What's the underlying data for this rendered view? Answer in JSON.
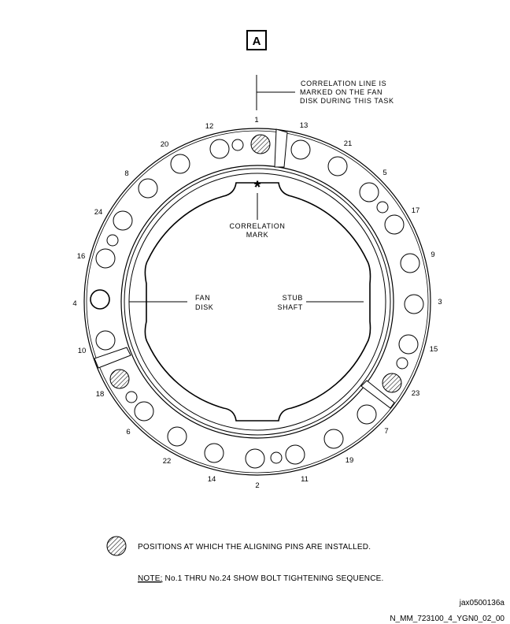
{
  "view_label": "A",
  "annotations": {
    "correlation_line": [
      "CORRELATION LINE IS",
      "MARKED ON THE FAN",
      "DISK DURING THIS TASK"
    ],
    "correlation_mark_symbol": "*",
    "correlation_mark": [
      "CORRELATION",
      "MARK"
    ],
    "fan_disk": [
      "FAN",
      "DISK"
    ],
    "stub_shaft": [
      "STUB",
      "SHAFT"
    ]
  },
  "bolt_labels": [
    "1",
    "13",
    "21",
    "5",
    "17",
    "9",
    "3",
    "15",
    "23",
    "7",
    "19",
    "11",
    "2",
    "14",
    "22",
    "6",
    "18",
    "10",
    "4",
    "16",
    "24",
    "8",
    "20",
    "12"
  ],
  "legend": {
    "hatched_symbol_meaning": "POSITIONS AT WHICH THE ALIGNING PINS ARE INSTALLED."
  },
  "note": {
    "prefix": "NOTE:",
    "text": " No.1 THRU No.24 SHOW BOLT TIGHTENING SEQUENCE."
  },
  "references": {
    "figure_id": "jax0500136a",
    "doc_id": "N_MM_723100_4_YGN0_02_00"
  },
  "colors": {
    "ink": "#000000",
    "background": "#ffffff"
  }
}
